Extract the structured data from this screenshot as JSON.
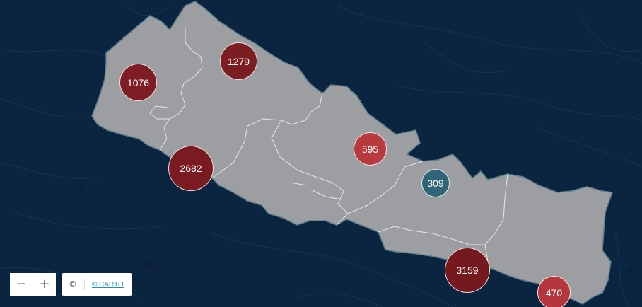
{
  "colors": {
    "ocean": "#0b2540",
    "land": "#9c9ea2",
    "cluster_dark": "#7c1d22",
    "cluster_mid": "#92262c",
    "cluster_light": "#b83a3f",
    "cluster_teal": "#2f6479"
  },
  "clusters": [
    {
      "id": "c1076",
      "label": "1076",
      "color": "#7e1e24"
    },
    {
      "id": "c1279",
      "label": "1279",
      "color": "#7c1d22"
    },
    {
      "id": "c2682",
      "label": "2682",
      "color": "#7a1b21"
    },
    {
      "id": "c595",
      "label": "595",
      "color": "#b83a3f"
    },
    {
      "id": "c309",
      "label": "309",
      "color": "#2f6479"
    },
    {
      "id": "c3159",
      "label": "3159",
      "color": "#75191f"
    },
    {
      "id": "c470",
      "label": "470",
      "color": "#b4373d"
    }
  ],
  "controls": {
    "zoom_out": "−",
    "zoom_in": "+",
    "copyright_symbol": "©",
    "attribution_link": "© CARTO"
  }
}
